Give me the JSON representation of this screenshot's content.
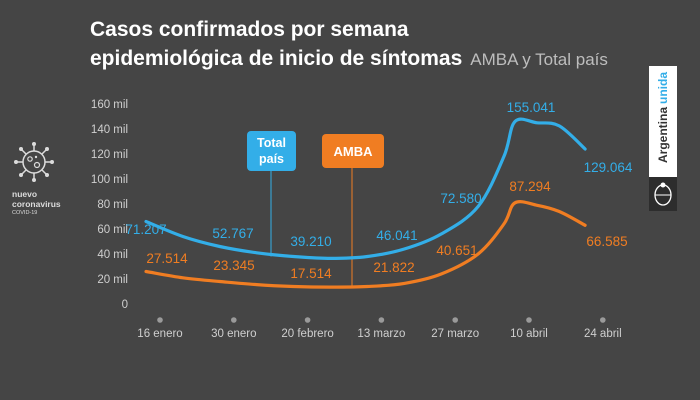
{
  "title_line1": "Casos confirmados por semana",
  "title_line2": "epidemiológica de inicio de síntomas",
  "subtitle": "AMBA y Total país",
  "logo": {
    "line1": "nuevo",
    "line2": "coronavirus",
    "line3": "COVID-19",
    "icon": "virus-icon"
  },
  "brand": {
    "part1": "Argentina",
    "part2": "unida",
    "seal_icon": "national-seal-icon"
  },
  "colors": {
    "total": "#33aee8",
    "amba": "#f07d22",
    "grid": "#5a5a5a",
    "text": "#cfcfcf"
  },
  "chart_data": {
    "type": "line",
    "title": "Casos confirmados por semana epidemiológica de inicio de síntomas",
    "subtitle": "AMBA y Total país",
    "x": [
      "16 enero",
      "30 enero",
      "20 febrero",
      "13 marzo",
      "27 marzo",
      "10 abril",
      "24 abril"
    ],
    "y_ticks": [
      "0",
      "20 mil",
      "40 mil",
      "60 mil",
      "80 mil",
      "100 mil",
      "120 mil",
      "140 mil",
      "160 mil"
    ],
    "ylim": [
      0,
      160000
    ],
    "grid": false,
    "series": [
      {
        "name": "Total país",
        "color": "#33aee8",
        "points": [
          {
            "x": 0.0,
            "y": 66000
          },
          {
            "x": 0.5,
            "y": 54000
          },
          {
            "x": 1.0,
            "y": 46000
          },
          {
            "x": 1.5,
            "y": 41000
          },
          {
            "x": 2.0,
            "y": 38000
          },
          {
            "x": 2.5,
            "y": 36500
          },
          {
            "x": 3.0,
            "y": 38000
          },
          {
            "x": 3.5,
            "y": 44000
          },
          {
            "x": 4.0,
            "y": 56000
          },
          {
            "x": 4.5,
            "y": 78000
          },
          {
            "x": 4.85,
            "y": 118000
          },
          {
            "x": 5.0,
            "y": 146000
          },
          {
            "x": 5.3,
            "y": 145000
          },
          {
            "x": 5.6,
            "y": 142500
          },
          {
            "x": 5.95,
            "y": 124000
          }
        ],
        "labels": [
          "71.207",
          "52.767",
          "39.210",
          "46.041",
          "72.580",
          "155.041",
          "129.064"
        ]
      },
      {
        "name": "AMBA",
        "color": "#f07d22",
        "points": [
          {
            "x": 0.0,
            "y": 26000
          },
          {
            "x": 0.5,
            "y": 21000
          },
          {
            "x": 1.0,
            "y": 18000
          },
          {
            "x": 1.5,
            "y": 15500
          },
          {
            "x": 2.0,
            "y": 14000
          },
          {
            "x": 2.5,
            "y": 13500
          },
          {
            "x": 3.0,
            "y": 14000
          },
          {
            "x": 3.5,
            "y": 16500
          },
          {
            "x": 4.0,
            "y": 24000
          },
          {
            "x": 4.5,
            "y": 40000
          },
          {
            "x": 4.85,
            "y": 64000
          },
          {
            "x": 5.0,
            "y": 81000
          },
          {
            "x": 5.3,
            "y": 79000
          },
          {
            "x": 5.6,
            "y": 74000
          },
          {
            "x": 5.95,
            "y": 63000
          }
        ],
        "labels": [
          "27.514",
          "23.345",
          "17.514",
          "21.822",
          "40.651",
          "87.294",
          "66.585"
        ]
      }
    ],
    "annotations": [
      {
        "text_line1": "Total",
        "text_line2": "país",
        "color": "#33aee8"
      },
      {
        "text_line1": "AMBA",
        "color": "#f07d22"
      }
    ]
  }
}
